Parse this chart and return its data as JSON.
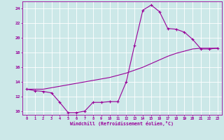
{
  "xlabel": "Windchill (Refroidissement éolien,°C)",
  "bg_color": "#cce8e8",
  "line_color": "#990099",
  "grid_color": "#ffffff",
  "xlim": [
    -0.5,
    23.5
  ],
  "ylim": [
    9.5,
    25.0
  ],
  "xticks": [
    0,
    1,
    2,
    3,
    4,
    5,
    6,
    7,
    8,
    9,
    10,
    11,
    12,
    13,
    14,
    15,
    16,
    17,
    18,
    19,
    20,
    21,
    22,
    23
  ],
  "yticks": [
    10,
    12,
    14,
    16,
    18,
    20,
    22,
    24
  ],
  "line1_x": [
    0,
    1,
    2,
    3,
    4,
    5,
    6,
    7,
    8,
    9,
    10,
    11,
    12,
    13,
    14,
    15,
    16,
    17,
    18,
    19,
    20,
    21,
    22,
    23
  ],
  "line1_y": [
    13.0,
    12.8,
    12.7,
    12.5,
    11.2,
    9.8,
    9.8,
    10.0,
    11.2,
    11.2,
    11.3,
    11.3,
    14.0,
    19.0,
    23.8,
    24.5,
    23.6,
    21.3,
    21.2,
    20.8,
    19.8,
    18.5,
    18.5,
    18.6
  ],
  "line2_x": [
    0,
    1,
    2,
    3,
    4,
    5,
    6,
    7,
    8,
    9,
    10,
    11,
    12,
    13,
    14,
    15,
    16,
    17,
    18,
    19,
    20,
    21,
    22,
    23
  ],
  "line2_y": [
    13.0,
    13.0,
    13.0,
    13.2,
    13.4,
    13.6,
    13.8,
    14.0,
    14.2,
    14.4,
    14.6,
    14.9,
    15.2,
    15.6,
    16.0,
    16.5,
    17.0,
    17.5,
    17.9,
    18.2,
    18.5,
    18.6,
    18.6,
    18.6
  ],
  "marker": "+"
}
